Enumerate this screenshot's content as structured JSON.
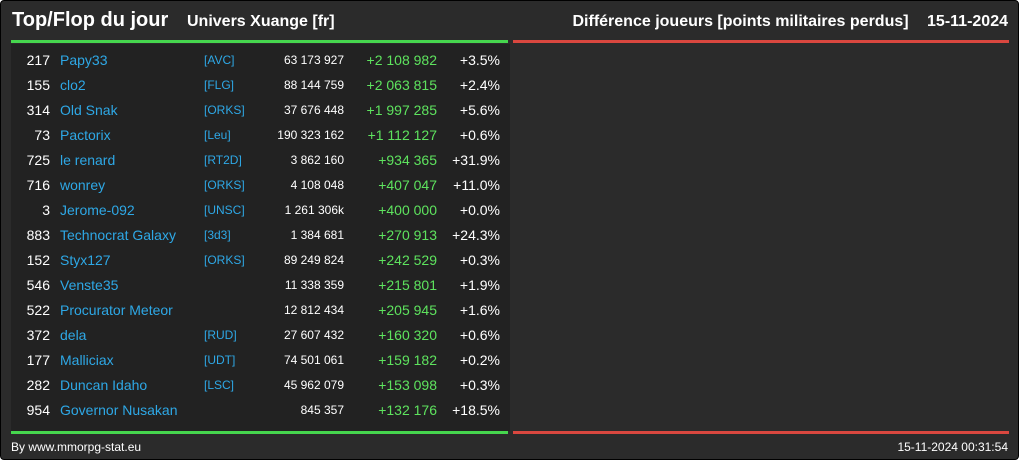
{
  "header": {
    "title": "Top/Flop du jour",
    "universe": "Univers Xuange [fr]",
    "metric": "Différence joueurs [points militaires perdus]",
    "date": "15-11-2024"
  },
  "colors": {
    "background": "#2b2b2b",
    "panel": "#222222",
    "top_accent": "#46d64e",
    "flop_accent": "#d9473f",
    "link": "#2ea8e6",
    "positive": "#5ee35e"
  },
  "top_rows": [
    {
      "rank": "217",
      "name": "Papy33",
      "alliance": "[AVC]",
      "total": "63 173 927",
      "diff": "+2 108 982",
      "pct": "+3.5%"
    },
    {
      "rank": "155",
      "name": "clo2",
      "alliance": "[FLG]",
      "total": "88 144 759",
      "diff": "+2 063 815",
      "pct": "+2.4%"
    },
    {
      "rank": "314",
      "name": "Old Snak",
      "alliance": "[ORKS]",
      "total": "37 676 448",
      "diff": "+1 997 285",
      "pct": "+5.6%"
    },
    {
      "rank": "73",
      "name": "Pactorix",
      "alliance": "[Leu]",
      "total": "190 323 162",
      "diff": "+1 112 127",
      "pct": "+0.6%"
    },
    {
      "rank": "725",
      "name": "le renard",
      "alliance": "[RT2D]",
      "total": "3 862 160",
      "diff": "+934 365",
      "pct": "+31.9%"
    },
    {
      "rank": "716",
      "name": "wonrey",
      "alliance": "[ORKS]",
      "total": "4 108 048",
      "diff": "+407 047",
      "pct": "+11.0%"
    },
    {
      "rank": "3",
      "name": "Jerome-092",
      "alliance": "[UNSC]",
      "total": "1 261 306k",
      "diff": "+400 000",
      "pct": "+0.0%"
    },
    {
      "rank": "883",
      "name": "Technocrat Galaxy",
      "alliance": "[3d3]",
      "total": "1 384 681",
      "diff": "+270 913",
      "pct": "+24.3%"
    },
    {
      "rank": "152",
      "name": "Styx127",
      "alliance": "[ORKS]",
      "total": "89 249 824",
      "diff": "+242 529",
      "pct": "+0.3%"
    },
    {
      "rank": "546",
      "name": "Venste35",
      "alliance": "",
      "total": "11 338 359",
      "diff": "+215 801",
      "pct": "+1.9%"
    },
    {
      "rank": "522",
      "name": "Procurator Meteor",
      "alliance": "",
      "total": "12 812 434",
      "diff": "+205 945",
      "pct": "+1.6%"
    },
    {
      "rank": "372",
      "name": "dela",
      "alliance": "[RUD]",
      "total": "27 607 432",
      "diff": "+160 320",
      "pct": "+0.6%"
    },
    {
      "rank": "177",
      "name": "Malliciax",
      "alliance": "[UDT]",
      "total": "74 501 061",
      "diff": "+159 182",
      "pct": "+0.2%"
    },
    {
      "rank": "282",
      "name": "Duncan Idaho",
      "alliance": "[LSC]",
      "total": "45 962 079",
      "diff": "+153 098",
      "pct": "+0.3%"
    },
    {
      "rank": "954",
      "name": "Governor Nusakan",
      "alliance": "",
      "total": "845 357",
      "diff": "+132 176",
      "pct": "+18.5%"
    }
  ],
  "footer": {
    "source": "By www.mmorpg-stat.eu",
    "timestamp": "15-11-2024 00:31:54"
  }
}
